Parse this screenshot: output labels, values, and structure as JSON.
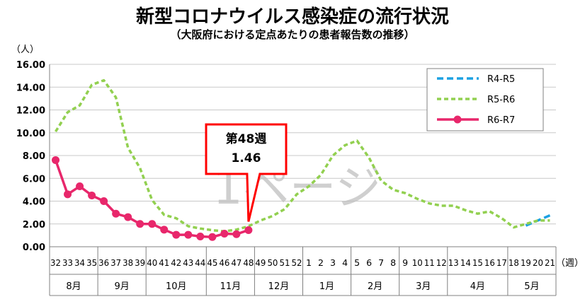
{
  "chart_data": {
    "type": "line",
    "title": "新型コロナウイルス感染症の流行状況",
    "subtitle": "（大阪府における定点あたりの患者報告数の推移）",
    "y_unit": "（人）",
    "x_unit": "（週）",
    "ylim": [
      0,
      16
    ],
    "y_ticks": [
      "0.00",
      "2.00",
      "4.00",
      "6.00",
      "8.00",
      "10.00",
      "12.00",
      "14.00",
      "16.00"
    ],
    "grid": true,
    "legend_position": "top-right",
    "categories": [
      "32",
      "33",
      "34",
      "35",
      "36",
      "37",
      "38",
      "39",
      "40",
      "41",
      "42",
      "43",
      "44",
      "45",
      "46",
      "47",
      "48",
      "49",
      "50",
      "51",
      "52",
      "1",
      "2",
      "3",
      "4",
      "5",
      "6",
      "7",
      "8",
      "9",
      "10",
      "11",
      "12",
      "13",
      "14",
      "15",
      "16",
      "17",
      "18",
      "19",
      "20",
      "21"
    ],
    "months": [
      {
        "label": "8月",
        "start": 0,
        "end": 3
      },
      {
        "label": "9月",
        "start": 4,
        "end": 7
      },
      {
        "label": "10月",
        "start": 8,
        "end": 12
      },
      {
        "label": "11月",
        "start": 13,
        "end": 16
      },
      {
        "label": "12月",
        "start": 17,
        "end": 20
      },
      {
        "label": "1月",
        "start": 21,
        "end": 24
      },
      {
        "label": "2月",
        "start": 25,
        "end": 28
      },
      {
        "label": "3月",
        "start": 29,
        "end": 32
      },
      {
        "label": "4月",
        "start": 33,
        "end": 37
      },
      {
        "label": "5月",
        "start": 38,
        "end": 41
      }
    ],
    "series": [
      {
        "name": "R4-R5",
        "color": "#1ba1e2",
        "style": "dashed",
        "values": [
          null,
          null,
          null,
          null,
          null,
          null,
          null,
          null,
          null,
          null,
          null,
          null,
          null,
          null,
          null,
          null,
          null,
          null,
          null,
          null,
          null,
          null,
          null,
          null,
          null,
          null,
          null,
          null,
          null,
          null,
          null,
          null,
          null,
          null,
          null,
          null,
          null,
          null,
          null,
          1.85,
          2.3,
          2.75
        ]
      },
      {
        "name": "R5-R6",
        "color": "#92d050",
        "style": "dotted",
        "values": [
          10.1,
          11.8,
          12.4,
          14.2,
          14.6,
          13.1,
          8.7,
          6.9,
          4.1,
          2.8,
          2.5,
          1.8,
          1.6,
          1.45,
          1.35,
          1.5,
          1.8,
          2.3,
          2.7,
          3.3,
          4.6,
          5.3,
          6.3,
          8.0,
          8.9,
          9.3,
          7.8,
          5.8,
          5.0,
          4.7,
          4.2,
          3.8,
          3.6,
          3.6,
          3.2,
          2.9,
          3.1,
          2.5,
          1.7,
          2.0,
          2.3,
          2.3
        ]
      },
      {
        "name": "R6-R7",
        "color": "#e8276b",
        "style": "solid",
        "values": [
          7.6,
          4.6,
          5.3,
          4.5,
          4.0,
          2.9,
          2.6,
          2.0,
          2.0,
          1.5,
          1.05,
          1.05,
          0.9,
          0.85,
          1.15,
          1.1,
          1.46,
          null,
          null,
          null,
          null,
          null,
          null,
          null,
          null,
          null,
          null,
          null,
          null,
          null,
          null,
          null,
          null,
          null,
          null,
          null,
          null,
          null,
          null,
          null,
          null,
          null
        ]
      }
    ],
    "callout": {
      "line1": "第48週",
      "line2": "1.46",
      "index": 16
    },
    "watermark": "1ページ"
  }
}
